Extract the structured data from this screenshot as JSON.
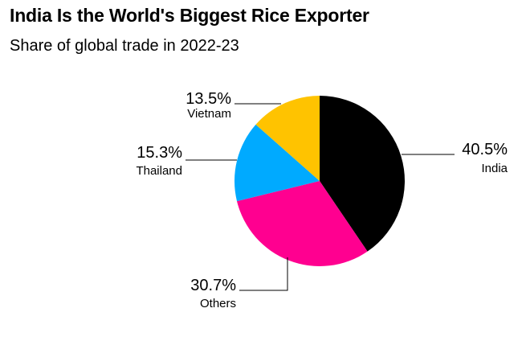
{
  "chart_data": {
    "type": "pie",
    "title": "India Is the World's Biggest Rice Exporter",
    "subtitle": "Share of global trade in 2022-23",
    "slices": [
      {
        "label": "India",
        "value": 40.5,
        "display": "40.5%",
        "color": "#000000"
      },
      {
        "label": "Others",
        "value": 30.7,
        "display": "30.7%",
        "color": "#ff0090"
      },
      {
        "label": "Thailand",
        "value": 15.3,
        "display": "15.3%",
        "color": "#00aaff"
      },
      {
        "label": "Vietnam",
        "value": 13.5,
        "display": "13.5%",
        "color": "#ffc300"
      }
    ],
    "start": "12 o'clock",
    "direction": "clockwise"
  }
}
